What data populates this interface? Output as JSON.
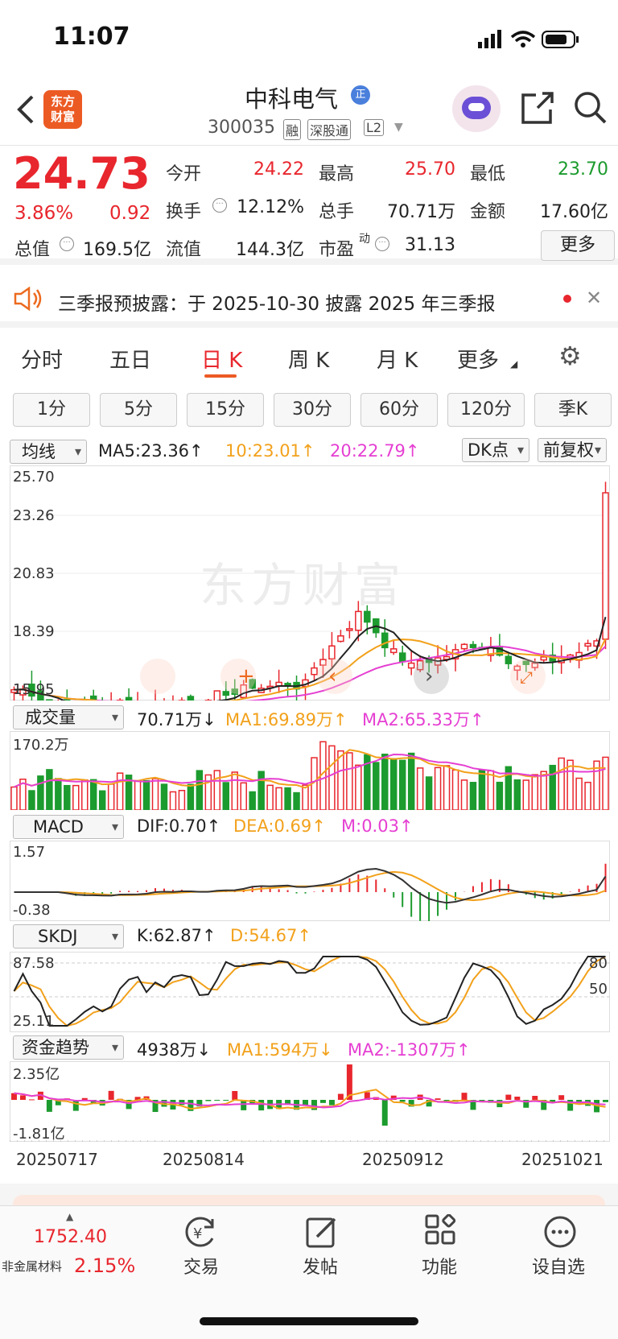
{
  "status": {
    "time": "11:07"
  },
  "header": {
    "logo_line1": "东方",
    "logo_line2": "财富",
    "stock_name": "中科电气",
    "code": "300035",
    "tags": [
      "融",
      "深股通",
      "L2"
    ]
  },
  "quote": {
    "price": "24.73",
    "change_pct": "3.86%",
    "change": "0.92",
    "open_label": "今开",
    "open": "24.22",
    "high_label": "最高",
    "high": "25.70",
    "low_label": "最低",
    "low": "23.70",
    "turnover_label": "换手",
    "turnover": "12.12%",
    "volume_label": "总手",
    "volume": "70.71万",
    "amount_label": "金额",
    "amount": "17.60亿",
    "mcap_label": "总值",
    "mcap": "169.5亿",
    "float_label": "流值",
    "float": "144.3亿",
    "pe_label": "市盈",
    "pe_sup": "动",
    "pe": "31.13",
    "more": "更多"
  },
  "notice": {
    "text": "三季报预披露：于 2025-10-30 披露 2025 年三季报"
  },
  "tabs": [
    "分时",
    "五日",
    "日 K",
    "周 K",
    "月 K",
    "更多"
  ],
  "periods": [
    "1分",
    "5分",
    "15分",
    "30分",
    "60分",
    "120分",
    "季K"
  ],
  "ma": {
    "selector": "均线",
    "ma5": "MA5:23.36↑",
    "ma10": "10:23.01↑",
    "ma20": "20:22.79↑",
    "dk": "DK点",
    "adj": "前复权",
    "ticks": [
      "25.70",
      "23.26",
      "20.83",
      "18.39",
      "15.95"
    ]
  },
  "vol": {
    "selector": "成交量",
    "value": "70.71万↓",
    "ma1": "MA1:69.89万↑",
    "ma2": "MA2:65.33万↑",
    "top": "170.2万"
  },
  "macd": {
    "selector": "MACD",
    "dif": "DIF:0.70↑",
    "dea": "DEA:0.69↑",
    "m": "M:0.03↑",
    "top": "1.57",
    "bottom": "-0.38"
  },
  "skdj": {
    "selector": "SKDJ",
    "k": "K:62.87↑",
    "d": "D:54.67↑",
    "top": "87.58",
    "bottom": "25.11",
    "r80": "80",
    "r50": "50"
  },
  "fund": {
    "selector": "资金趋势",
    "value": "4938万↓",
    "ma1": "MA1:594万↓",
    "ma2": "MA2:-1307万↑",
    "top": "2.35亿",
    "bottom": "-1.81亿"
  },
  "dates": [
    "20250717",
    "20250814",
    "20250912",
    "20251021"
  ],
  "bottom": {
    "index_value": "1752.40",
    "index_name": "非金属材料",
    "index_pct": "2.15%",
    "items": [
      "交易",
      "发帖",
      "功能",
      "设自选"
    ]
  },
  "watermark": "东方财富"
}
